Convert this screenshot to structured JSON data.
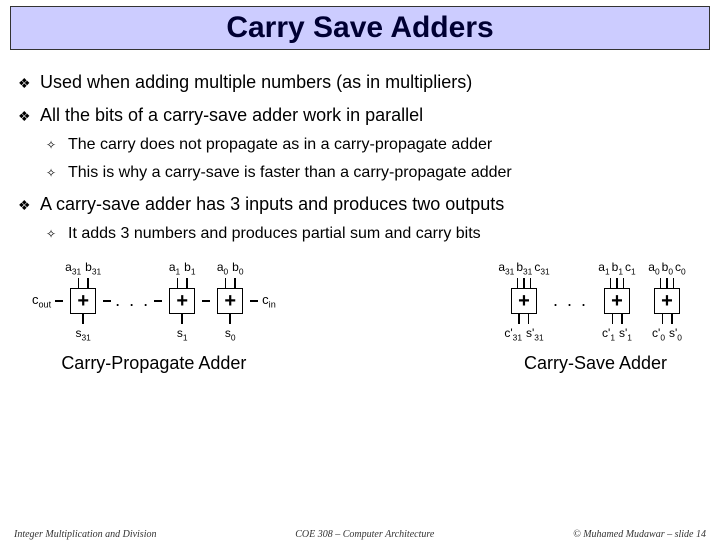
{
  "title": "Carry Save Adders",
  "bullets": {
    "b1": "Used when adding multiple numbers (as in multipliers)",
    "b2": "All the bits of a carry-save adder work in parallel",
    "b2_1": "The carry does not propagate as in a carry-propagate adder",
    "b2_2": "This is why a carry-save is faster than a carry-propagate adder",
    "b3": "A carry-save adder has 3 inputs and produces two outputs",
    "b3_1": "It adds 3 numbers and produces partial sum and carry bits"
  },
  "markers": {
    "l1": "❖",
    "l2": "✧"
  },
  "diagram": {
    "cpa": {
      "title": "Carry-Propagate Adder",
      "cout": "c",
      "cout_sub": "out",
      "cin": "c",
      "cin_sub": "in",
      "dots": ". . .",
      "cols": [
        {
          "a": "a",
          "asub": "31",
          "b": "b",
          "bsub": "31",
          "s": "s",
          "ssub": "31"
        },
        {
          "a": "a",
          "asub": "1",
          "b": "b",
          "bsub": "1",
          "s": "s",
          "ssub": "1"
        },
        {
          "a": "a",
          "asub": "0",
          "b": "b",
          "bsub": "0",
          "s": "s",
          "ssub": "0"
        }
      ]
    },
    "csa": {
      "title": "Carry-Save Adder",
      "dots": ". . .",
      "cols": [
        {
          "a": "a",
          "asub": "31",
          "b": "b",
          "bsub": "31",
          "c": "c",
          "csub": "31",
          "co": "c'",
          "cosub": "31",
          "s": "s'",
          "ssub": "31"
        },
        {
          "a": "a",
          "asub": "1",
          "b": "b",
          "bsub": "1",
          "c": "c",
          "csub": "1",
          "co": "c'",
          "cosub": "1",
          "s": "s'",
          "ssub": "1"
        },
        {
          "a": "a",
          "asub": "0",
          "b": "b",
          "bsub": "0",
          "c": "c",
          "csub": "0",
          "co": "c'",
          "cosub": "0",
          "s": "s'",
          "ssub": "0"
        }
      ]
    },
    "plus": "+"
  },
  "footer": {
    "left": "Integer Multiplication and Division",
    "center": "COE 308 – Computer Architecture",
    "right": "© Muhamed Mudawar – slide 14"
  },
  "colors": {
    "title_bg": "#ccccff",
    "title_text": "#000033",
    "text": "#000000"
  }
}
